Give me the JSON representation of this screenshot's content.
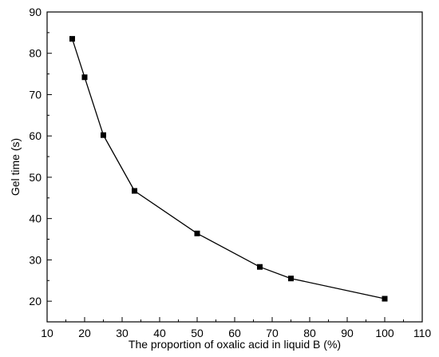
{
  "chart_data": {
    "type": "line",
    "title": "",
    "xlabel": "The proportion of oxalic acid in liquid B (%)",
    "ylabel": "Gel time (s)",
    "xlim": [
      10,
      110
    ],
    "ylim": [
      15,
      90
    ],
    "xticks": [
      10,
      20,
      30,
      40,
      50,
      60,
      70,
      80,
      90,
      100,
      110
    ],
    "yticks": [
      20,
      30,
      40,
      50,
      60,
      70,
      80,
      90
    ],
    "grid": false,
    "legend": "none",
    "marker": "square",
    "color": "#000000",
    "series": [
      {
        "x": [
          16.7,
          20,
          25,
          33.3,
          50,
          66.7,
          75,
          100
        ],
        "y": [
          83.5,
          74.2,
          60.2,
          46.7,
          36.4,
          28.3,
          25.5,
          20.6
        ]
      }
    ]
  }
}
